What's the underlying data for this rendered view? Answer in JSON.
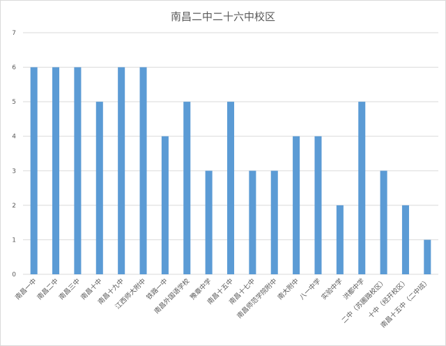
{
  "chart_data": {
    "type": "bar",
    "title": "南昌二中二十六中校区",
    "xlabel": "",
    "ylabel": "",
    "ylim": [
      0,
      7
    ],
    "yticks": [
      0,
      1,
      2,
      3,
      4,
      5,
      6,
      7
    ],
    "grid": true,
    "legend": "none",
    "bar_color": "#5b9bd5",
    "grid_color": "#d9d9d9",
    "categories": [
      "南昌一中",
      "南昌二中",
      "南昌三中",
      "南昌十中",
      "南昌十九中",
      "江西师大附中",
      "铁路一中",
      "南昌外国语学校",
      "豫章中学",
      "南昌十五中",
      "南昌十七中",
      "南昌师范学院附中",
      "南大附中",
      "八一中学",
      "实验中学",
      "洪都中学",
      "二中（苏圃路校区）",
      "十中（经开校区）",
      "南昌十五中（二中班）"
    ],
    "values": [
      6,
      6,
      6,
      5,
      6,
      6,
      4,
      5,
      3,
      5,
      3,
      3,
      4,
      4,
      2,
      5,
      3,
      2,
      1
    ]
  }
}
